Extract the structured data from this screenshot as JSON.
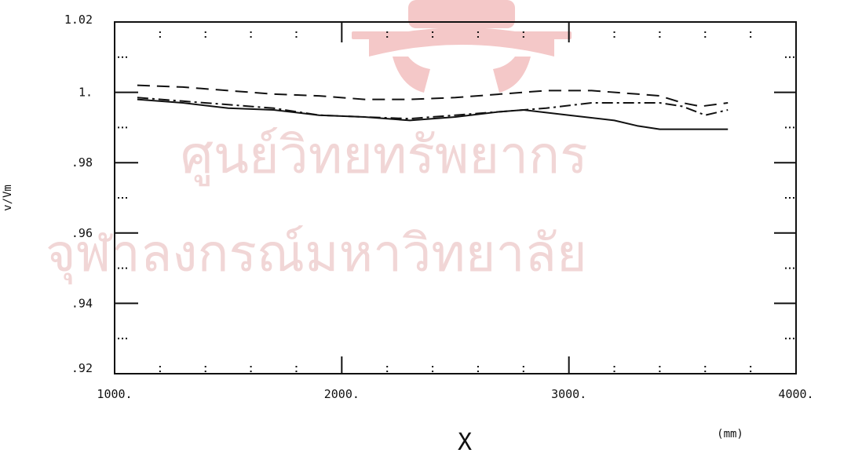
{
  "watermark": {
    "line1": "ศูนย์วิทยทรัพยากร",
    "line2": "จุฬาลงกรณ์มหาวิทยาลัย",
    "color": "#f1d6d6",
    "seal_color": "#f4c8c8"
  },
  "chart_data": {
    "type": "line",
    "title": "",
    "xlabel": "X",
    "xunit": "(mm)",
    "ylabel": "v/Vm",
    "xlim": [
      1000,
      4000
    ],
    "ylim": [
      0.92,
      1.02
    ],
    "x_ticks": [
      {
        "value": 1000,
        "label": "1000."
      },
      {
        "value": 2000,
        "label": "2000."
      },
      {
        "value": 3000,
        "label": "3000."
      },
      {
        "value": 4000,
        "label": "4000."
      }
    ],
    "y_ticks": [
      {
        "value": 0.92,
        "label": ".92"
      },
      {
        "value": 0.94,
        "label": ".94"
      },
      {
        "value": 0.96,
        "label": ".96"
      },
      {
        "value": 0.98,
        "label": ".98"
      },
      {
        "value": 1.0,
        "label": "1."
      },
      {
        "value": 1.02,
        "label": "1.02"
      }
    ],
    "grid": false,
    "series": [
      {
        "style": "dashed",
        "color": "#111111",
        "x": [
          1100,
          1300,
          1500,
          1700,
          1900,
          2100,
          2300,
          2500,
          2700,
          2900,
          3100,
          3300,
          3400,
          3500,
          3580,
          3700
        ],
        "y": [
          1.002,
          1.0015,
          1.0005,
          0.9995,
          0.999,
          0.998,
          0.998,
          0.9985,
          0.9995,
          1.0005,
          1.0005,
          0.9995,
          0.999,
          0.997,
          0.996,
          0.997
        ]
      },
      {
        "style": "dash-dot",
        "color": "#111111",
        "x": [
          1100,
          1300,
          1500,
          1700,
          1900,
          2100,
          2300,
          2500,
          2700,
          2900,
          3100,
          3300,
          3400,
          3500,
          3600,
          3700
        ],
        "y": [
          0.9985,
          0.9975,
          0.9965,
          0.9955,
          0.9935,
          0.993,
          0.9925,
          0.9935,
          0.9945,
          0.9955,
          0.997,
          0.997,
          0.997,
          0.996,
          0.9935,
          0.995
        ]
      },
      {
        "style": "solid",
        "color": "#111111",
        "x": [
          1100,
          1300,
          1500,
          1700,
          1900,
          2100,
          2300,
          2500,
          2700,
          2800,
          3000,
          3200,
          3300,
          3400,
          3500,
          3700
        ],
        "y": [
          0.998,
          0.997,
          0.9955,
          0.995,
          0.9935,
          0.993,
          0.992,
          0.993,
          0.9945,
          0.995,
          0.9935,
          0.992,
          0.9905,
          0.9895,
          0.9895,
          0.9895
        ]
      }
    ]
  }
}
